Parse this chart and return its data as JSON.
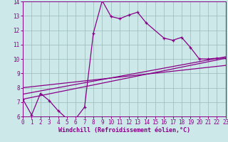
{
  "bg_color": "#cce8e8",
  "line_color": "#880088",
  "grid_color": "#99bbbb",
  "xlabel": "Windchill (Refroidissement éolien,°C)",
  "xlim": [
    0,
    23
  ],
  "ylim": [
    6,
    14
  ],
  "xticks": [
    0,
    1,
    2,
    3,
    4,
    5,
    6,
    7,
    8,
    9,
    10,
    11,
    12,
    13,
    14,
    15,
    16,
    17,
    18,
    19,
    20,
    21,
    22,
    23
  ],
  "yticks": [
    6,
    7,
    8,
    9,
    10,
    11,
    12,
    13,
    14
  ],
  "curve_x": [
    0,
    1,
    2,
    3,
    4,
    5,
    6,
    7,
    8,
    9,
    10,
    11,
    12,
    13,
    14,
    16,
    17,
    18,
    19,
    20,
    21,
    22,
    23
  ],
  "curve_y": [
    7.2,
    6.1,
    7.6,
    7.1,
    6.4,
    5.85,
    5.85,
    6.65,
    11.8,
    14.05,
    12.95,
    12.8,
    13.05,
    13.25,
    12.5,
    11.45,
    11.3,
    11.5,
    10.8,
    10.0,
    10.0,
    10.05,
    10.05
  ],
  "line1_x": [
    0,
    23
  ],
  "line1_y": [
    7.55,
    10.15
  ],
  "line2_x": [
    0,
    23
  ],
  "line2_y": [
    8.0,
    9.55
  ],
  "line3_x": [
    0,
    23
  ],
  "line3_y": [
    7.2,
    10.05
  ],
  "tick_fontsize": 5.5,
  "xlabel_fontsize": 6.0
}
